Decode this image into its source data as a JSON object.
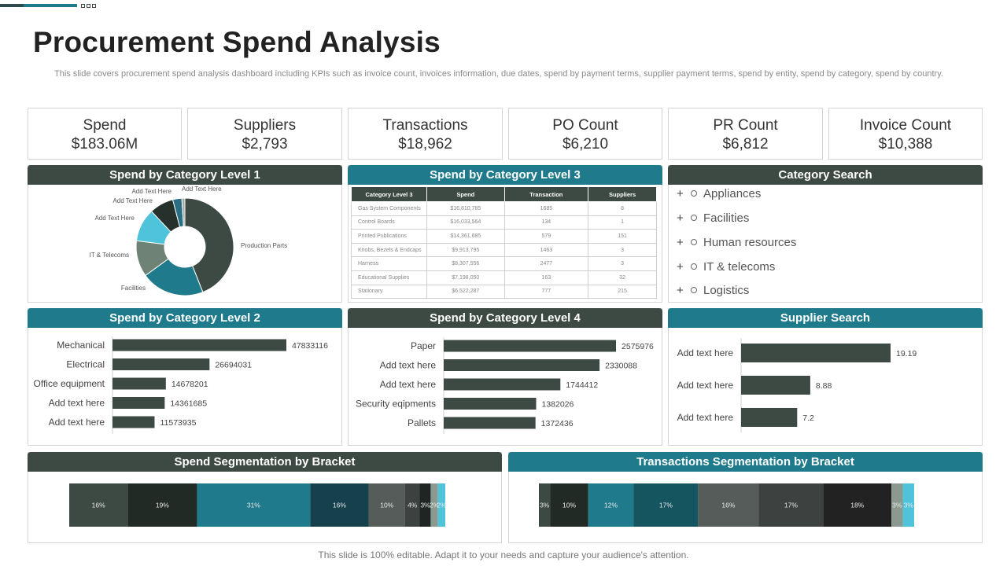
{
  "title": "Procurement Spend Analysis",
  "subtitle": "This slide covers procurement spend analysis dashboard including KPIs such as invoice count, invoices information, due dates, spend by payment terms, supplier payment terms, spend by entity, spend by category, spend by country.",
  "kpis": [
    {
      "label": "Spend",
      "value": "$183.06M"
    },
    {
      "label": "Suppliers",
      "value": "$2,793"
    },
    {
      "label": "Transactions",
      "value": "$18,962"
    },
    {
      "label": "PO Count",
      "value": "$6,210"
    },
    {
      "label": "PR Count",
      "value": "$6,812"
    },
    {
      "label": "Invoice Count",
      "value": "$10,388"
    }
  ],
  "panels": {
    "cat1": "Spend by Category Level 1",
    "cat3": "Spend by Category Level 3",
    "search": "Category Search",
    "cat2": "Spend by Category Level 2",
    "cat4": "Spend by Category Level 4",
    "supplier": "Supplier Search",
    "spend_seg": "Spend Segmentation by Bracket",
    "trans_seg": "Transactions Segmentation by Bracket"
  },
  "table": {
    "headers": [
      "Category Level 3",
      "Spend",
      "Transaction",
      "Suppliers"
    ],
    "rows": [
      [
        "Gas System Components",
        "$16,810,785",
        "1685",
        "8"
      ],
      [
        "Control Boards",
        "$16,033,564",
        "134",
        "1"
      ],
      [
        "Printed Publications",
        "$14,361,685",
        "579",
        "151"
      ],
      [
        "Knobs, Bezels & Endcaps",
        "$9,913,795",
        "1463",
        "3"
      ],
      [
        "Harness",
        "$8,307,556",
        "2477",
        "3"
      ],
      [
        "Educational Supplies",
        "$7,198,050",
        "163",
        "32"
      ],
      [
        "Stationary",
        "$6,522,287",
        "777",
        "215"
      ]
    ]
  },
  "category_search": [
    "Appliances",
    "Facilities",
    "Human resources",
    "IT & telecoms",
    "Logistics"
  ],
  "footer": "This slide is 100% editable. Adapt it to your needs and capture your audience's attention.",
  "colors": {
    "dark": "#3d4a43",
    "teal": "#1f7a8c"
  },
  "chart_data": [
    {
      "type": "pie",
      "labels": [
        "Production Parts",
        "Add Text Here",
        "IT & Telecoms",
        "Add Text Here",
        "Add Text Here",
        "Add Text Here",
        "Facilities"
      ],
      "values": [
        44,
        21,
        12,
        11,
        8,
        3,
        1
      ],
      "colors": [
        "#3d4a43",
        "#1f7a8c",
        "#6e8275",
        "#4fc3d9",
        "#26312c",
        "#2b6f86",
        "#9aaaa0"
      ]
    },
    {
      "type": "bar",
      "orientation": "horizontal",
      "categories": [
        "Mechanical",
        "Electrical",
        "Office equipment",
        "Add text here",
        "Add text here"
      ],
      "values": [
        47833116,
        26694031,
        14678201,
        14361685,
        11573935
      ]
    },
    {
      "type": "bar",
      "orientation": "horizontal",
      "categories": [
        "Paper",
        "Add text here",
        "Add text here",
        "Security eqipments",
        "Pallets"
      ],
      "values": [
        2575976,
        2330088,
        1744412,
        1382026,
        1372436
      ]
    },
    {
      "type": "bar",
      "orientation": "horizontal",
      "categories": [
        "Add text here",
        "Add text here",
        "Add text here"
      ],
      "values": [
        19.19,
        8.88,
        7.2
      ]
    },
    {
      "type": "bar",
      "orientation": "stacked-horizontal",
      "labels": [
        "16%",
        "19%",
        "31%",
        "16%",
        "10%",
        "4%",
        "3%",
        "2%",
        "2%"
      ],
      "values": [
        16,
        19,
        31,
        16,
        10,
        4,
        3,
        2,
        2
      ],
      "colors": [
        "#3d4a43",
        "#222a26",
        "#1f7a8c",
        "#15414c",
        "#555c59",
        "#3d4240",
        "#1e2522",
        "#8a9a90",
        "#4fc3d9"
      ]
    },
    {
      "type": "bar",
      "orientation": "stacked-horizontal",
      "labels": [
        "3%",
        "10%",
        "12%",
        "17%",
        "16%",
        "17%",
        "18%",
        "3%",
        "3%"
      ],
      "values": [
        3,
        10,
        12,
        17,
        16,
        17,
        18,
        3,
        3
      ],
      "colors": [
        "#3d4a43",
        "#222a26",
        "#1f7a8c",
        "#15555f",
        "#555c59",
        "#3d4240",
        "#222222",
        "#8a9a90",
        "#4fc3d9"
      ]
    }
  ]
}
